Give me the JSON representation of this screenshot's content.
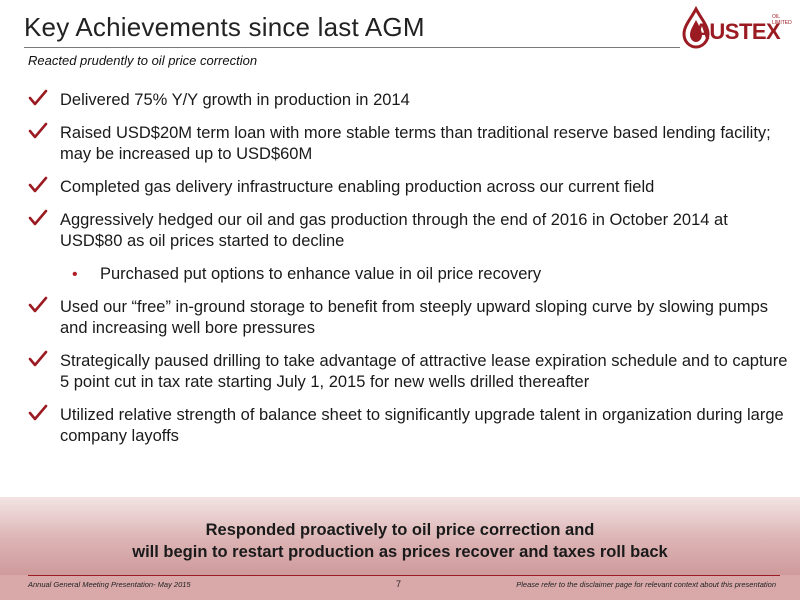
{
  "header": {
    "title": "Key Achievements since last AGM",
    "subtitle": "Reacted prudently to oil price correction"
  },
  "logo": {
    "name": "AUSTEX",
    "small_text": "OIL LIMITED",
    "icon": "oil-drop-logo-icon",
    "color": "#9b1b22"
  },
  "bullets": [
    {
      "type": "check",
      "text": "Delivered 75% Y/Y growth in production in 2014"
    },
    {
      "type": "check",
      "text": "Raised USD$20M term loan with more stable terms than traditional reserve based lending facility; may be increased up to USD$60M"
    },
    {
      "type": "check",
      "text": "Completed gas delivery infrastructure enabling production across our current field"
    },
    {
      "type": "check",
      "text": "Aggressively hedged our oil and gas production through the end of 2016 in October 2014 at USD$80 as oil prices started to decline"
    },
    {
      "type": "sub",
      "text": "Purchased put options to enhance value in oil price recovery"
    },
    {
      "type": "check",
      "text": "Used our “free” in-ground storage to benefit from steeply upward sloping curve by slowing pumps and increasing well bore pressures"
    },
    {
      "type": "check",
      "text": "Strategically paused drilling to take advantage of attractive lease expiration schedule and to capture 5 point cut in tax rate starting July 1, 2015 for new wells drilled thereafter"
    },
    {
      "type": "check",
      "text": "Utilized relative strength of balance sheet to significantly upgrade talent in organization during large company layoffs"
    }
  ],
  "conclusion": {
    "line1": "Responded proactively to oil price correction and",
    "line2": "will begin to restart production as prices recover and taxes roll back"
  },
  "footer": {
    "left": "Annual General Meeting Presentation- May 2015",
    "page": "7",
    "right": "Please refer to the disclaimer page for relevant context about this presentation"
  },
  "colors": {
    "accent": "#9b1b22",
    "band_top": "#f3e4e4",
    "band_bottom": "#cf9a9c"
  }
}
